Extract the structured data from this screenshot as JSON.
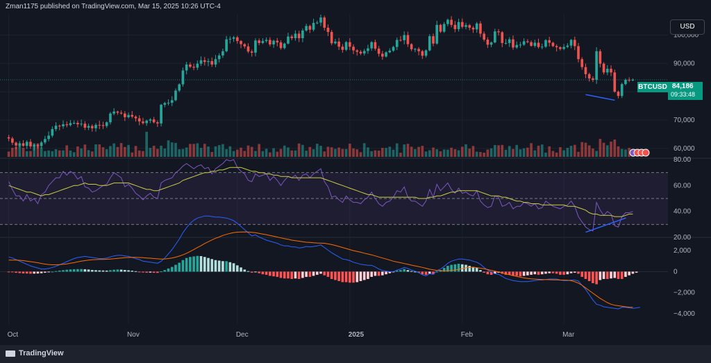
{
  "header": {
    "text": "Zman1175 published on TradingView.com, Mar 15, 2025 10:26 UTC-4"
  },
  "currency": "USD",
  "symbol": "BTCUSD",
  "last_price": "84,186",
  "countdown": "09:33:48",
  "footer": {
    "brand": "TradingView"
  },
  "colors": {
    "up": "#26a69a",
    "down": "#ef5350",
    "rsi": "#7e57c2",
    "rsi_ma": "#cdcd45",
    "macd": "#2962ff",
    "signal": "#ff6d00",
    "divergence": "#2962ff"
  },
  "chart_data": [
    {
      "type": "candlestick",
      "title": "BTCUSD",
      "xlabels": [
        "Oct",
        "Nov",
        "Dec",
        "2025",
        "Feb",
        "Mar"
      ],
      "ylim": [
        57000,
        106500
      ],
      "yticks": [
        60000,
        70000,
        80000,
        90000,
        100000
      ],
      "ytick_labels": [
        "60,000",
        "70,000",
        "80,000",
        "90,000",
        "100,000"
      ],
      "closes": [
        63500,
        62000,
        61000,
        61800,
        60900,
        62300,
        60700,
        61200,
        60800,
        62100,
        63300,
        64500,
        66800,
        68000,
        67800,
        68500,
        68200,
        68900,
        69000,
        68500,
        68700,
        67300,
        67900,
        67100,
        68300,
        68200,
        67900,
        69200,
        72300,
        73000,
        72600,
        72300,
        71000,
        71800,
        71200,
        70600,
        69500,
        68900,
        69800,
        70200,
        69200,
        68800,
        75400,
        76000,
        76100,
        77000,
        80400,
        82600,
        87500,
        89600,
        88800,
        88500,
        89900,
        91100,
        90500,
        90800,
        89600,
        91500,
        92800,
        94300,
        98500,
        98700,
        99200,
        97900,
        96800,
        96000,
        94200,
        93800,
        98100,
        97200,
        97900,
        98300,
        96700,
        98000,
        97400,
        95400,
        97000,
        99500,
        98900,
        100500,
        98900,
        101600,
        103200,
        101900,
        104300,
        104400,
        106200,
        102600,
        101100,
        97100,
        97700,
        95900,
        94800,
        97500,
        95900,
        94600,
        94100,
        93500,
        94400,
        95300,
        97500,
        95200,
        93400,
        92400,
        93900,
        94500,
        95800,
        98300,
        98200,
        100000,
        96800,
        95000,
        95100,
        94300,
        92700,
        94600,
        99600,
        97000,
        103600,
        101200,
        103900,
        105400,
        103600,
        102100,
        104600,
        102900,
        103500,
        102600,
        102000,
        104100,
        100500,
        98400,
        96600,
        97400,
        101300,
        101000,
        97200,
        97200,
        98500,
        95600,
        96500,
        96600,
        97800,
        97500,
        96200,
        97300,
        95800,
        95900,
        98200,
        97300,
        96100,
        95700,
        95100,
        95800,
        96300,
        98300,
        96100,
        91500,
        88700,
        86200,
        84700,
        84200,
        94300,
        89900,
        86800,
        88100,
        86800,
        80000,
        78500,
        82700,
        84200,
        84100,
        84200
      ],
      "volume_ylim": [
        0,
        1
      ],
      "rsi": {
        "values": [
          63,
          57,
          52,
          52,
          48,
          53,
          48,
          50,
          46,
          53,
          55,
          60,
          63,
          66,
          66,
          71,
          68,
          71,
          69,
          65,
          67,
          59,
          58,
          55,
          56,
          58,
          60,
          61,
          66,
          70,
          68,
          66,
          59,
          61,
          58,
          54,
          52,
          49,
          52,
          54,
          51,
          50,
          62,
          64,
          65,
          66,
          70,
          72,
          75,
          77,
          75,
          73,
          75,
          76,
          73,
          74,
          69,
          73,
          75,
          77,
          80,
          79,
          80,
          74,
          71,
          69,
          64,
          63,
          69,
          67,
          68,
          69,
          64,
          67,
          64,
          60,
          64,
          67,
          66,
          68,
          64,
          68,
          69,
          66,
          69,
          71,
          73,
          63,
          59,
          51,
          52,
          49,
          47,
          52,
          49,
          47,
          47,
          46,
          49,
          51,
          55,
          50,
          46,
          44,
          47,
          48,
          51,
          56,
          55,
          59,
          51,
          48,
          48,
          46,
          44,
          48,
          57,
          51,
          61,
          56,
          59,
          62,
          57,
          54,
          58,
          54,
          55,
          53,
          52,
          56,
          48,
          45,
          43,
          44,
          52,
          51,
          44,
          45,
          47,
          42,
          44,
          44,
          47,
          46,
          44,
          46,
          42,
          43,
          48,
          46,
          44,
          43,
          42,
          44,
          45,
          48,
          44,
          36,
          32,
          28,
          26,
          25,
          47,
          41,
          37,
          40,
          38,
          29,
          28,
          36,
          39,
          39,
          40
        ],
        "ma": [
          60,
          59,
          58,
          57,
          56,
          55,
          55,
          54,
          53,
          52,
          53,
          53,
          54,
          55,
          56,
          57,
          58,
          59,
          60,
          60,
          61,
          62,
          61,
          61,
          61,
          60,
          60,
          60,
          61,
          62,
          62,
          62,
          62,
          62,
          61,
          60,
          59,
          58,
          57,
          57,
          56,
          56,
          57,
          58,
          59,
          60,
          61,
          62,
          64,
          65,
          66,
          67,
          68,
          69,
          70,
          70,
          71,
          71,
          72,
          72,
          73,
          74,
          74,
          74,
          74,
          73,
          72,
          71,
          71,
          70,
          70,
          69,
          69,
          68,
          68,
          67,
          67,
          67,
          66,
          66,
          66,
          66,
          66,
          66,
          66,
          66,
          66,
          65,
          64,
          63,
          62,
          61,
          60,
          59,
          58,
          57,
          56,
          55,
          54,
          53,
          53,
          52,
          51,
          51,
          51,
          51,
          51,
          51,
          51,
          51,
          51,
          51,
          51,
          50,
          50,
          50,
          51,
          51,
          52,
          52,
          53,
          54,
          55,
          55,
          56,
          56,
          56,
          56,
          56,
          56,
          55,
          54,
          53,
          52,
          52,
          52,
          51,
          51,
          50,
          49,
          48,
          48,
          47,
          47,
          46,
          46,
          46,
          45,
          45,
          45,
          45,
          45,
          45,
          45,
          44,
          44,
          44,
          43,
          42,
          41,
          39,
          38,
          38,
          37,
          37,
          37,
          37,
          36,
          36,
          36,
          37,
          38,
          38
        ],
        "ylim": [
          20,
          80
        ],
        "yticks": [
          20,
          40,
          60,
          80
        ],
        "ytick_labels": [
          "20.00",
          "40.00",
          "60.00",
          "80.00"
        ],
        "levels": [
          30,
          50,
          70
        ]
      },
      "macd": {
        "hist": [
          -20,
          -60,
          -110,
          -140,
          -170,
          -180,
          -200,
          -190,
          -180,
          -150,
          -100,
          -50,
          0,
          50,
          100,
          140,
          180,
          210,
          230,
          240,
          250,
          230,
          200,
          160,
          140,
          120,
          110,
          100,
          140,
          180,
          200,
          190,
          160,
          130,
          90,
          40,
          -20,
          -80,
          -100,
          -90,
          -110,
          -120,
          20,
          150,
          300,
          450,
          650,
          850,
          1100,
          1300,
          1400,
          1450,
          1500,
          1480,
          1400,
          1300,
          1200,
          1100,
          1050,
          1000,
          1000,
          900,
          800,
          600,
          400,
          200,
          50,
          -100,
          -50,
          -150,
          -250,
          -300,
          -400,
          -450,
          -500,
          -600,
          -650,
          -650,
          -700,
          -650,
          -700,
          -600,
          -500,
          -500,
          -400,
          -300,
          -200,
          -350,
          -500,
          -700,
          -800,
          -900,
          -1000,
          -1000,
          -1050,
          -1050,
          -1000,
          -900,
          -800,
          -700,
          -500,
          -400,
          -400,
          -350,
          -250,
          -150,
          -50,
          100,
          150,
          250,
          150,
          50,
          0,
          -100,
          -250,
          -300,
          -200,
          -250,
          0,
          150,
          350,
          550,
          650,
          700,
          750,
          700,
          650,
          550,
          450,
          350,
          150,
          -100,
          -250,
          -300,
          -200,
          -100,
          -200,
          -300,
          -300,
          -400,
          -400,
          -450,
          -400,
          -350,
          -300,
          -250,
          -300,
          -250,
          -200,
          -150,
          -150,
          -200,
          -300,
          -300,
          -250,
          -150,
          -100,
          -200,
          -500,
          -700,
          -900,
          -1100,
          -1200,
          -800,
          -700,
          -700,
          -650,
          -600,
          -700,
          -700,
          -500,
          -350,
          -200,
          -100
        ],
        "macd": [
          1400,
          1300,
          1150,
          1000,
          850,
          700,
          550,
          450,
          350,
          250,
          250,
          300,
          400,
          500,
          650,
          800,
          950,
          1100,
          1250,
          1350,
          1400,
          1450,
          1400,
          1350,
          1300,
          1250,
          1250,
          1300,
          1400,
          1500,
          1550,
          1550,
          1500,
          1450,
          1350,
          1250,
          1150,
          1000,
          950,
          900,
          850,
          800,
          1000,
          1300,
          1700,
          2100,
          2600,
          3100,
          3700,
          4200,
          4600,
          4900,
          5100,
          5200,
          5300,
          5300,
          5250,
          5200,
          5200,
          5150,
          5100,
          5000,
          4850,
          4600,
          4300,
          4000,
          3700,
          3400,
          3500,
          3300,
          3150,
          3000,
          2900,
          2800,
          2700,
          2550,
          2450,
          2450,
          2350,
          2350,
          2250,
          2300,
          2400,
          2350,
          2400,
          2450,
          2550,
          2300,
          2050,
          1800,
          1600,
          1400,
          1200,
          1150,
          1050,
          900,
          800,
          700,
          650,
          600,
          600,
          450,
          250,
          100,
          50,
          0,
          0,
          150,
          250,
          400,
          300,
          150,
          50,
          -100,
          -300,
          -400,
          -200,
          -250,
          100,
          250,
          500,
          800,
          1000,
          1100,
          1200,
          1200,
          1150,
          1100,
          1000,
          900,
          700,
          400,
          150,
          -50,
          -200,
          -250,
          -450,
          -650,
          -750,
          -850,
          -900,
          -950,
          -950,
          -950,
          -900,
          -850,
          -800,
          -800,
          -750,
          -700,
          -700,
          -700,
          -800,
          -850,
          -850,
          -800,
          -800,
          -900,
          -1300,
          -1700,
          -2200,
          -2700,
          -3100,
          -3200,
          -3350,
          -3400,
          -3450,
          -3500,
          -3550,
          -3400,
          -3400,
          -3450,
          -3500,
          -3450,
          -3400
        ],
        "signal": [
          1100,
          1100,
          1100,
          1080,
          1050,
          1000,
          950,
          900,
          850,
          780,
          720,
          680,
          650,
          650,
          670,
          700,
          740,
          800,
          860,
          930,
          1000,
          1050,
          1100,
          1130,
          1150,
          1160,
          1170,
          1180,
          1200,
          1230,
          1270,
          1300,
          1330,
          1350,
          1360,
          1360,
          1350,
          1330,
          1300,
          1280,
          1250,
          1220,
          1200,
          1210,
          1250,
          1300,
          1380,
          1480,
          1600,
          1750,
          1920,
          2100,
          2300,
          2480,
          2680,
          2850,
          3020,
          3180,
          3300,
          3450,
          3550,
          3650,
          3720,
          3760,
          3780,
          3790,
          3780,
          3750,
          3710,
          3650,
          3580,
          3520,
          3450,
          3370,
          3300,
          3220,
          3140,
          3080,
          3000,
          2950,
          2900,
          2850,
          2800,
          2780,
          2750,
          2730,
          2720,
          2700,
          2640,
          2580,
          2500,
          2400,
          2300,
          2200,
          2100,
          2000,
          1920,
          1850,
          1760,
          1680,
          1600,
          1500,
          1400,
          1300,
          1200,
          1100,
          1000,
          920,
          850,
          770,
          700,
          620,
          550,
          480,
          400,
          320,
          230,
          170,
          120,
          100,
          80,
          90,
          120,
          160,
          220,
          290,
          360,
          400,
          400,
          380,
          330,
          270,
          200,
          120,
          50,
          -30,
          -120,
          -210,
          -300,
          -380,
          -460,
          -530,
          -600,
          -640,
          -680,
          -710,
          -730,
          -750,
          -760,
          -770,
          -780,
          -790,
          -800,
          -810,
          -820,
          -860,
          -960,
          -1100,
          -1300,
          -1550,
          -1800,
          -2050,
          -2300,
          -2550,
          -2750,
          -2950,
          -3100,
          -3200,
          -3250,
          -3300,
          -3350,
          -3380,
          -3400
        ],
        "ylim": [
          -5000,
          3000
        ],
        "yticks": [
          -4000,
          -2000,
          0,
          2000
        ],
        "ytick_labels": [
          "−4,000",
          "−2,000",
          "0",
          "2,000"
        ]
      }
    }
  ]
}
